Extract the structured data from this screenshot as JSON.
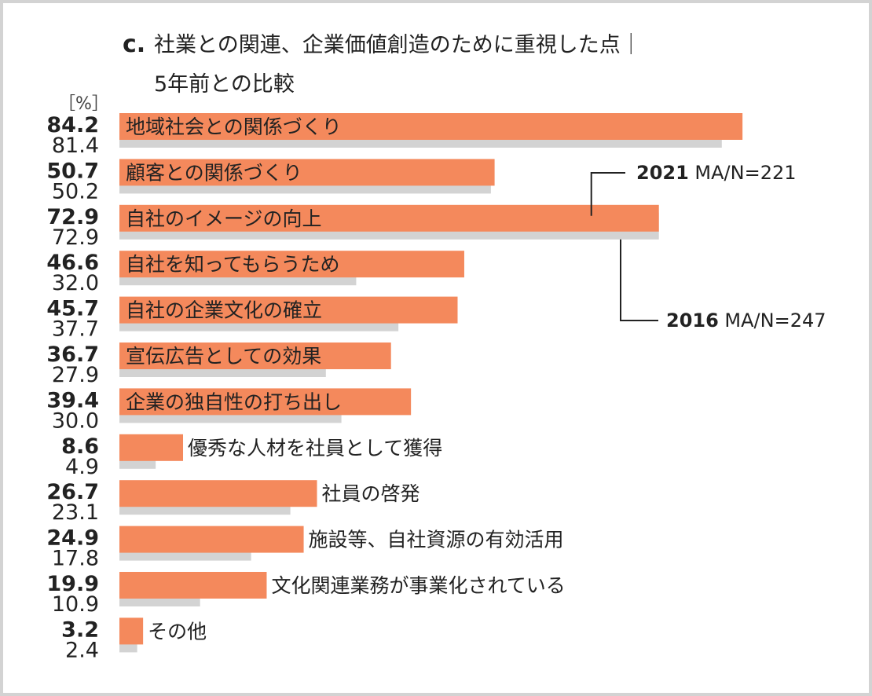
{
  "chart_data": {
    "type": "bar",
    "orientation": "horizontal",
    "title_prefix": "c.",
    "title_line1": "社業との関連、企業価値創造のために重視した点｜",
    "title_line2": "5年前との比較",
    "unit_label": "［%］",
    "categories": [
      "地域社会との関係づくり",
      "顧客との関係づくり",
      "自社のイメージの向上",
      "自社を知ってもらうため",
      "自社の企業文化の確立",
      "宣伝広告としての効果",
      "企業の独自性の打ち出し",
      "優秀な人材を社員として獲得",
      "社員の啓発",
      "施設等、自社資源の有効活用",
      "文化関連業務が事業化されている",
      "その他"
    ],
    "series": [
      {
        "name": "2021",
        "sample": "MA/N=221",
        "color": "#f4895c",
        "values": [
          84.2,
          50.7,
          72.9,
          46.6,
          45.7,
          36.7,
          39.4,
          8.6,
          26.7,
          24.9,
          19.9,
          3.2
        ],
        "labels": [
          "84.2",
          "50.7",
          "72.9",
          "46.6",
          "45.7",
          "36.7",
          "39.4",
          "8.6",
          "26.7",
          "24.9",
          "19.9",
          "3.2"
        ]
      },
      {
        "name": "2016",
        "sample": "MA/N=247",
        "color": "#d3d3d3",
        "values": [
          81.4,
          50.2,
          72.9,
          32.0,
          37.7,
          27.9,
          30.0,
          4.9,
          23.1,
          17.8,
          10.9,
          2.4
        ],
        "labels": [
          "81.4",
          "50.2",
          "72.9",
          "32.0",
          "37.7",
          "27.9",
          "30.0",
          "4.9",
          "23.1",
          "17.8",
          "10.9",
          "2.4"
        ]
      }
    ],
    "xlim": [
      0,
      100
    ],
    "grid": false,
    "legend_placement": "right callouts"
  }
}
